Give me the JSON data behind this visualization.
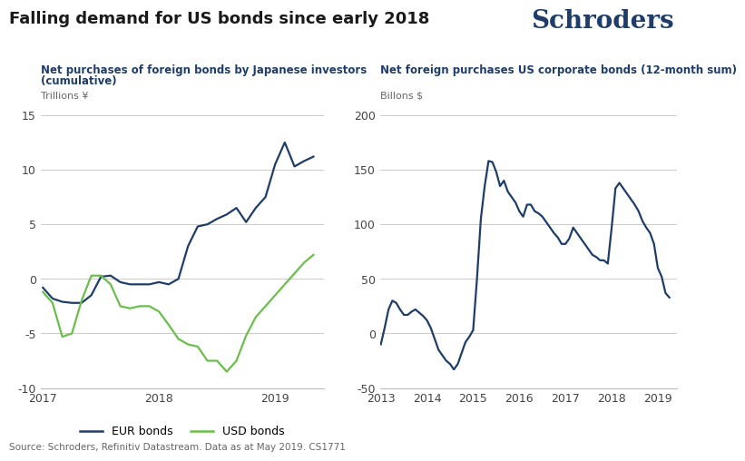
{
  "title": "Falling demand for US bonds since early 2018",
  "title_fontsize": 13,
  "schroders_text": "Schroders",
  "source_text": "Source: Schroders, Refinitiv Datastream. Data as at May 2019. CS1771",
  "left_chart": {
    "title_line1": "Net purchases of foreign bonds by Japanese investors",
    "title_line2": "(cumulative)",
    "unit": "Trillions ¥",
    "ylim": [
      -10,
      15
    ],
    "yticks": [
      -10,
      -5,
      0,
      5,
      10,
      15
    ],
    "color_eur": "#1f3d6b",
    "color_usd": "#6abf4b",
    "legend_eur": "EUR bonds",
    "legend_usd": "USD bonds",
    "eur_x": [
      2017.0,
      2017.083,
      2017.167,
      2017.25,
      2017.333,
      2017.417,
      2017.5,
      2017.583,
      2017.667,
      2017.75,
      2017.833,
      2017.917,
      2018.0,
      2018.083,
      2018.167,
      2018.25,
      2018.333,
      2018.417,
      2018.5,
      2018.583,
      2018.667,
      2018.75,
      2018.833,
      2018.917,
      2019.0,
      2019.083,
      2019.167,
      2019.25,
      2019.33
    ],
    "eur_y": [
      -0.8,
      -1.8,
      -2.1,
      -2.2,
      -2.2,
      -1.5,
      0.2,
      0.3,
      -0.3,
      -0.5,
      -0.5,
      -0.5,
      -0.3,
      -0.5,
      0.0,
      3.0,
      4.8,
      5.0,
      5.5,
      5.9,
      6.5,
      5.2,
      6.5,
      7.5,
      10.5,
      12.5,
      10.3,
      10.8,
      11.2
    ],
    "usd_x": [
      2017.0,
      2017.083,
      2017.167,
      2017.25,
      2017.333,
      2017.417,
      2017.5,
      2017.583,
      2017.667,
      2017.75,
      2017.833,
      2017.917,
      2018.0,
      2018.083,
      2018.167,
      2018.25,
      2018.333,
      2018.417,
      2018.5,
      2018.583,
      2018.667,
      2018.75,
      2018.833,
      2018.917,
      2019.0,
      2019.083,
      2019.167,
      2019.25,
      2019.33
    ],
    "usd_y": [
      -1.2,
      -2.2,
      -5.3,
      -5.0,
      -2.0,
      0.3,
      0.3,
      -0.5,
      -2.5,
      -2.7,
      -2.5,
      -2.5,
      -3.0,
      -4.2,
      -5.5,
      -6.0,
      -6.2,
      -7.5,
      -7.5,
      -8.5,
      -7.5,
      -5.2,
      -3.5,
      -2.5,
      -1.5,
      -0.5,
      0.5,
      1.5,
      2.2
    ],
    "xlim": [
      2016.98,
      2019.42
    ],
    "xticks": [
      2017,
      2018,
      2019
    ]
  },
  "right_chart": {
    "title": "Net foreign purchases US corporate bonds (12-month sum)",
    "unit": "Billons $",
    "ylim": [
      -50,
      200
    ],
    "yticks": [
      -50,
      0,
      50,
      100,
      150,
      200
    ],
    "color": "#1f3d6b",
    "x": [
      2013.0,
      2013.083,
      2013.167,
      2013.25,
      2013.333,
      2013.417,
      2013.5,
      2013.583,
      2013.667,
      2013.75,
      2013.833,
      2013.917,
      2014.0,
      2014.083,
      2014.167,
      2014.25,
      2014.333,
      2014.417,
      2014.5,
      2014.583,
      2014.667,
      2014.75,
      2014.833,
      2014.917,
      2015.0,
      2015.083,
      2015.167,
      2015.25,
      2015.333,
      2015.417,
      2015.5,
      2015.583,
      2015.667,
      2015.75,
      2015.833,
      2015.917,
      2016.0,
      2016.083,
      2016.167,
      2016.25,
      2016.333,
      2016.417,
      2016.5,
      2016.583,
      2016.667,
      2016.75,
      2016.833,
      2016.917,
      2017.0,
      2017.083,
      2017.167,
      2017.25,
      2017.333,
      2017.417,
      2017.5,
      2017.583,
      2017.667,
      2017.75,
      2017.833,
      2017.917,
      2018.0,
      2018.083,
      2018.167,
      2018.25,
      2018.333,
      2018.417,
      2018.5,
      2018.583,
      2018.667,
      2018.75,
      2018.833,
      2018.917,
      2019.0,
      2019.083,
      2019.167,
      2019.25
    ],
    "y": [
      -10,
      5,
      22,
      30,
      28,
      22,
      17,
      17,
      20,
      22,
      19,
      16,
      12,
      5,
      -5,
      -15,
      -20,
      -25,
      -28,
      -33,
      -28,
      -18,
      -8,
      -3,
      3,
      50,
      105,
      135,
      158,
      157,
      148,
      135,
      140,
      130,
      125,
      120,
      112,
      107,
      118,
      118,
      112,
      110,
      107,
      102,
      97,
      92,
      88,
      82,
      82,
      87,
      97,
      92,
      87,
      82,
      77,
      72,
      70,
      67,
      67,
      64,
      97,
      133,
      138,
      133,
      128,
      123,
      118,
      112,
      103,
      97,
      92,
      82,
      60,
      52,
      37,
      33
    ],
    "xlim": [
      2012.98,
      2019.42
    ],
    "xticks": [
      2013,
      2014,
      2015,
      2016,
      2017,
      2018,
      2019
    ]
  },
  "bg_color": "#ffffff",
  "axis_color": "#bbbbbb",
  "text_color": "#444444",
  "grid_color": "#cccccc",
  "line_width": 1.6,
  "title_color": "#1f3d6b"
}
